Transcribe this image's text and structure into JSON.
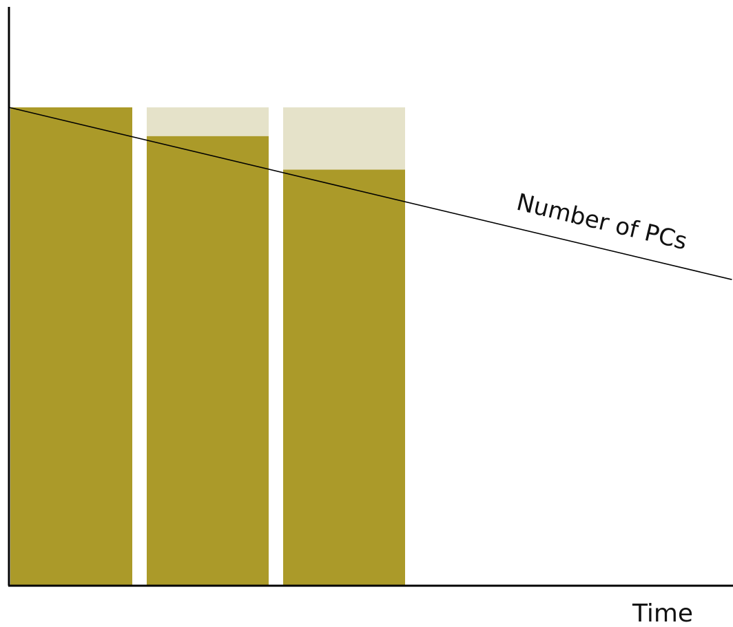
{
  "chart_data": {
    "type": "bar",
    "xlabel": "Time",
    "ylabel": "",
    "grid": false,
    "ylim": [
      0,
      100
    ],
    "categories": [
      "",
      "",
      ""
    ],
    "series": [
      {
        "values": [
          100,
          94,
          87
        ]
      },
      {
        "values": [
          0,
          6,
          13
        ]
      }
    ],
    "line": {
      "label": "Number of PCs",
      "x": [
        0,
        5.3
      ],
      "y": [
        100,
        64
      ]
    },
    "colors": {
      "bar": "#ab9a29",
      "bar_light": "#e5e2c9",
      "line": "#000000",
      "axis": "#000000"
    }
  }
}
